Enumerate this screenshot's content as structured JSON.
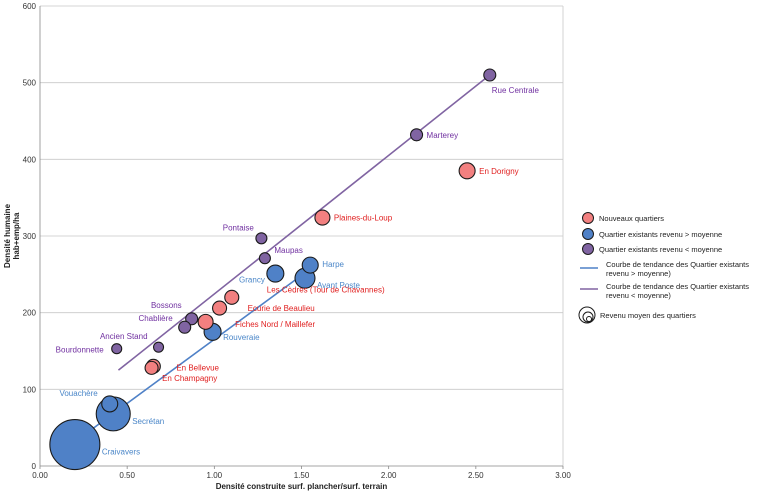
{
  "chart_data": {
    "type": "scatter",
    "title": "",
    "xlabel": "Densité construite surf. plancher/surf. terrain",
    "ylabel": "Densité humaine hab+emp/ha",
    "xlim": [
      0,
      3
    ],
    "ylim": [
      0,
      600
    ],
    "x_ticks": [
      "0.00",
      "0.50",
      "1.00",
      "1.50",
      "2.00",
      "2.50",
      "3.00"
    ],
    "y_ticks": [
      "0",
      "100",
      "200",
      "300",
      "400",
      "500",
      "600"
    ],
    "grid": "horizontal",
    "legend_position": "right",
    "colors": {
      "nouveaux": "#f28080",
      "nouveaux_label": "#e02020",
      "quartier_plus": "#4f81c7",
      "quartier_plus_label": "#4a86c8",
      "quartier_moins": "#8064a2",
      "quartier_moins_label": "#7030a0",
      "trend_plus": "#4f81c7",
      "trend_moins": "#8064a2"
    },
    "series": [
      {
        "name": "Nouveaux quartiers",
        "group": "nouveaux",
        "points": [
          {
            "label": "En Dorigny",
            "x": 2.45,
            "y": 385,
            "size": 16,
            "label_side": "right"
          },
          {
            "label": "Plaines-du-Loup",
            "x": 1.62,
            "y": 324,
            "size": 15,
            "label_side": "right"
          },
          {
            "label": "Les Cèdres (Tour de Chavannes)",
            "x": 1.1,
            "y": 220,
            "size": 14,
            "label_side": "right"
          },
          {
            "label": "Ecurie de Beaulieu",
            "x": 1.03,
            "y": 206,
            "size": 14,
            "label_side": "right"
          },
          {
            "label": "Fiches Nord / Maillefer",
            "x": 0.95,
            "y": 188,
            "size": 15,
            "label_side": "right"
          },
          {
            "label": "En Bellevue",
            "x": 0.65,
            "y": 130,
            "size": 14,
            "label_side": "right"
          },
          {
            "label": "En Champagny",
            "x": 0.64,
            "y": 128,
            "size": 13,
            "label_side": "right"
          }
        ]
      },
      {
        "name": "Quartier existants revenu > moyenne",
        "group": "quartier_plus",
        "points": [
          {
            "label": "Harpe",
            "x": 1.55,
            "y": 262,
            "size": 16,
            "label_side": "right"
          },
          {
            "label": "Avant Poste",
            "x": 1.52,
            "y": 245,
            "size": 20,
            "label_side": "right"
          },
          {
            "label": "Grancy",
            "x": 1.35,
            "y": 251,
            "size": 17,
            "label_side": "left"
          },
          {
            "label": "Rouveraie",
            "x": 0.99,
            "y": 175,
            "size": 17,
            "label_side": "right"
          },
          {
            "label": "Vouachère",
            "x": 0.4,
            "y": 81,
            "size": 16,
            "label_side": "left"
          },
          {
            "label": "Secrétan",
            "x": 0.42,
            "y": 68,
            "size": 34,
            "label_side": "right"
          },
          {
            "label": "Craivavers",
            "x": 0.2,
            "y": 28,
            "size": 50,
            "label_side": "right"
          }
        ]
      },
      {
        "name": "Quartier existants revenu < moyenne",
        "group": "quartier_moins",
        "points": [
          {
            "label": "Rue Centrale",
            "x": 2.58,
            "y": 510,
            "size": 12,
            "label_side": "right"
          },
          {
            "label": "Marterey",
            "x": 2.16,
            "y": 432,
            "size": 12,
            "label_side": "right"
          },
          {
            "label": "Pontaise",
            "x": 1.27,
            "y": 297,
            "size": 11,
            "label_side": "left"
          },
          {
            "label": "Maupas",
            "x": 1.29,
            "y": 271,
            "size": 11,
            "label_side": "right"
          },
          {
            "label": "Bossons",
            "x": 0.87,
            "y": 192,
            "size": 12,
            "label_side": "left"
          },
          {
            "label": "Chablière",
            "x": 0.83,
            "y": 181,
            "size": 12,
            "label_side": "left"
          },
          {
            "label": "Ancien Stand",
            "x": 0.68,
            "y": 155,
            "size": 10,
            "label_side": "left"
          },
          {
            "label": "Bourdonnette",
            "x": 0.44,
            "y": 153,
            "size": 10,
            "label_side": "left"
          }
        ]
      }
    ],
    "trendlines": [
      {
        "group": "trend_plus",
        "name": "Courbe de tendance des Quartier existants revenu > moyenne)",
        "x": [
          0.19,
          1.58
        ],
        "y": [
          30,
          262
        ]
      },
      {
        "group": "trend_moins",
        "name": "Courbe de tendance des Quartier existants revenu < moyenne)",
        "x": [
          0.45,
          2.58
        ],
        "y": [
          125,
          510
        ]
      }
    ],
    "legend": {
      "nouveaux": "Nouveaux quartiers",
      "quartier_plus": "Quartier existants revenu > moyenne",
      "quartier_moins": "Quartier existants revenu < moyenne",
      "trend_plus_lines": [
        "Courbe de tendance des Quartier existants",
        "revenu > moyenne)"
      ],
      "trend_moins_lines": [
        "Courbe de tendance des Quartier existants",
        "revenu < moyenne)"
      ],
      "size_label": "Revenu moyen des quartiers"
    }
  }
}
